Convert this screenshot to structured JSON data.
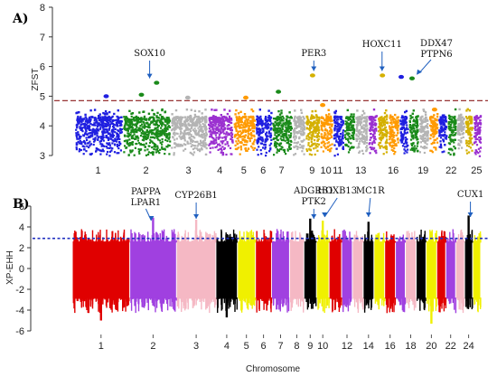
{
  "chart_data": [
    {
      "type": "scatter",
      "panel_label": "A)",
      "ylabel": "ZFST",
      "ylim": [
        3,
        8
      ],
      "yticks": [
        3,
        4,
        5,
        6,
        7,
        8
      ],
      "threshold": 4.85,
      "threshold_color": "#8b1a1a",
      "chromosomes": [
        {
          "id": 1,
          "color": "#1f1fe0"
        },
        {
          "id": 2,
          "color": "#1a8a1a"
        },
        {
          "id": 3,
          "color": "#b4b4b4"
        },
        {
          "id": 4,
          "color": "#9b30d0"
        },
        {
          "id": 5,
          "color": "#ff9a00"
        },
        {
          "id": 6,
          "color": "#1f1fe0"
        },
        {
          "id": 7,
          "color": "#1a8a1a"
        },
        {
          "id": 8,
          "color": "#b4b4b4"
        },
        {
          "id": 9,
          "color": "#d4b000"
        },
        {
          "id": 10,
          "color": "#ff9a00"
        },
        {
          "id": 11,
          "color": "#1f1fe0"
        },
        {
          "id": 12,
          "color": "#1a8a1a"
        },
        {
          "id": 13,
          "color": "#b4b4b4"
        },
        {
          "id": 14,
          "color": "#9b30d0"
        },
        {
          "id": 15,
          "color": "#d4b000"
        },
        {
          "id": 16,
          "color": "#ff9a00"
        },
        {
          "id": 17,
          "color": "#1f1fe0"
        },
        {
          "id": 18,
          "color": "#1a8a1a"
        },
        {
          "id": 19,
          "color": "#b4b4b4"
        },
        {
          "id": 20,
          "color": "#ff9a00"
        },
        {
          "id": 21,
          "color": "#1f1fe0"
        },
        {
          "id": 22,
          "color": "#1a8a1a"
        },
        {
          "id": 23,
          "color": "#b4b4b4"
        },
        {
          "id": 24,
          "color": "#d4b000"
        },
        {
          "id": 25,
          "color": "#9b30d0"
        }
      ],
      "xtick_labels": [
        "1",
        "2",
        "3",
        "4",
        "5",
        "6",
        "7",
        "9",
        "10",
        "11",
        "13",
        "16",
        "19",
        "22",
        "25"
      ],
      "xtick_chroms": [
        1,
        2,
        3,
        4,
        5,
        6,
        7,
        9,
        10,
        11,
        13,
        16,
        19,
        22,
        25
      ],
      "peaks": [
        {
          "chrom": 1,
          "value": 5.0
        },
        {
          "chrom": 2,
          "value": 5.45
        },
        {
          "chrom": 2,
          "value": 5.05
        },
        {
          "chrom": 3,
          "value": 4.95
        },
        {
          "chrom": 5,
          "value": 4.95
        },
        {
          "chrom": 7,
          "value": 5.15
        },
        {
          "chrom": 9,
          "value": 5.7
        },
        {
          "chrom": 10,
          "value": 4.7
        },
        {
          "chrom": 15,
          "value": 5.7
        },
        {
          "chrom": 17,
          "value": 5.65
        },
        {
          "chrom": 18,
          "value": 5.6
        },
        {
          "chrom": 20,
          "value": 4.55
        }
      ],
      "annotations": [
        {
          "text": "SOX10",
          "chrom": 2
        },
        {
          "text": "PER3",
          "chrom": 9
        },
        {
          "text": "HOXC11",
          "chrom": 15
        },
        {
          "text": "DDX47",
          "chrom": 18
        },
        {
          "text": "PTPN6",
          "chrom": 18
        }
      ]
    },
    {
      "type": "scatter",
      "panel_label": "B)",
      "ylabel": "XP-EHH",
      "xlabel": "Chromosome",
      "ylim": [
        -6,
        6
      ],
      "yticks": [
        -6,
        -4,
        -2,
        0,
        2,
        4,
        6
      ],
      "threshold": 2.9,
      "threshold_color": "#1f2fbf",
      "chromosomes": [
        {
          "id": 1,
          "color": "#e00000"
        },
        {
          "id": 2,
          "color": "#a040e0"
        },
        {
          "id": 3,
          "color": "#f5b8c4"
        },
        {
          "id": 4,
          "color": "#000000"
        },
        {
          "id": 5,
          "color": "#f0f000"
        },
        {
          "id": 6,
          "color": "#e00000"
        },
        {
          "id": 7,
          "color": "#a040e0"
        },
        {
          "id": 8,
          "color": "#f5b8c4"
        },
        {
          "id": 9,
          "color": "#000000"
        },
        {
          "id": 10,
          "color": "#f0f000"
        },
        {
          "id": 11,
          "color": "#e00000"
        },
        {
          "id": 12,
          "color": "#a040e0"
        },
        {
          "id": 13,
          "color": "#f5b8c4"
        },
        {
          "id": 14,
          "color": "#000000"
        },
        {
          "id": 15,
          "color": "#f0f000"
        },
        {
          "id": 16,
          "color": "#e00000"
        },
        {
          "id": 17,
          "color": "#a040e0"
        },
        {
          "id": 18,
          "color": "#f5b8c4"
        },
        {
          "id": 19,
          "color": "#000000"
        },
        {
          "id": 20,
          "color": "#f0f000"
        },
        {
          "id": 21,
          "color": "#e00000"
        },
        {
          "id": 22,
          "color": "#a040e0"
        },
        {
          "id": 23,
          "color": "#f5b8c4"
        },
        {
          "id": 24,
          "color": "#000000"
        },
        {
          "id": 25,
          "color": "#f0f000"
        }
      ],
      "xtick_labels": [
        "1",
        "2",
        "3",
        "4",
        "5",
        "6",
        "7",
        "8",
        "9",
        "10",
        "12",
        "14",
        "16",
        "18",
        "20",
        "22",
        "24"
      ],
      "xtick_chroms": [
        1,
        2,
        3,
        4,
        5,
        6,
        7,
        8,
        9,
        10,
        12,
        14,
        16,
        18,
        20,
        22,
        24
      ],
      "peaks": [
        {
          "chrom": 2,
          "value": 4.9
        },
        {
          "chrom": 3,
          "value": 4.7
        },
        {
          "chrom": 9,
          "value": 4.8
        },
        {
          "chrom": 10,
          "value": 4.6
        },
        {
          "chrom": 14,
          "value": 4.5
        },
        {
          "chrom": 24,
          "value": 5.1
        },
        {
          "chrom": 20,
          "value": -5.3
        },
        {
          "chrom": 1,
          "value": -5.0
        },
        {
          "chrom": 4,
          "value": -4.7
        }
      ],
      "annotations": [
        {
          "text": "PAPPA",
          "chrom": 2
        },
        {
          "text": "LPAR1",
          "chrom": 2
        },
        {
          "text": "CYP26B1",
          "chrom": 3
        },
        {
          "text": "ADGRB1",
          "chrom": 9
        },
        {
          "text": "PTK2",
          "chrom": 9
        },
        {
          "text": "HOXB13",
          "chrom": 10
        },
        {
          "text": "MC1R",
          "chrom": 14
        },
        {
          "text": "CUX1",
          "chrom": 24
        }
      ]
    }
  ]
}
